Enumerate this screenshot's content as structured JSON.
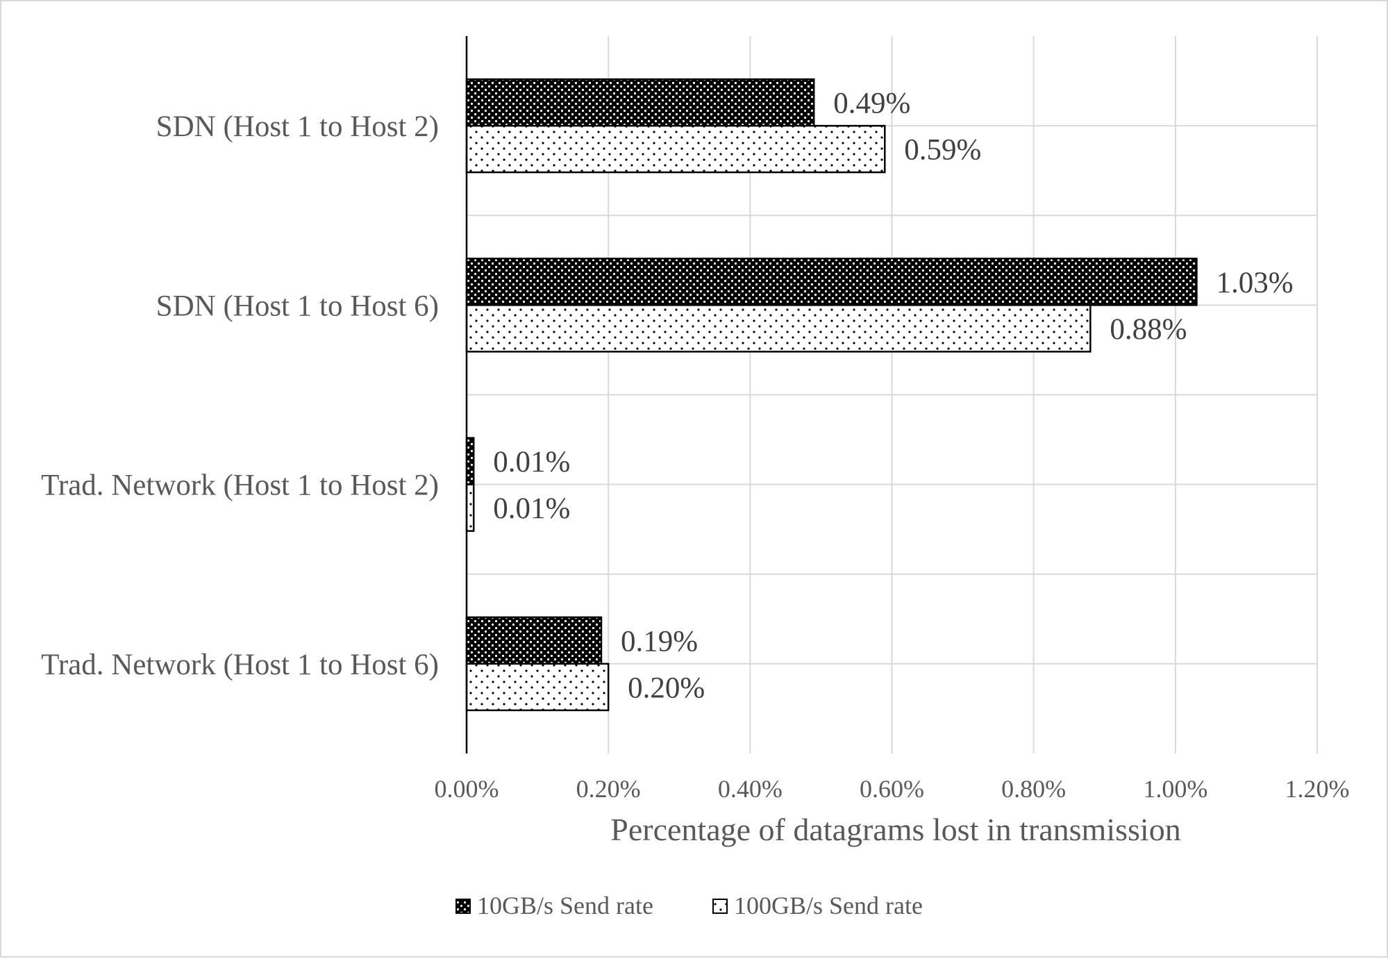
{
  "chart_data": {
    "type": "bar",
    "orientation": "horizontal",
    "categories": [
      "SDN (Host 1 to Host 2)",
      "SDN (Host 1 to Host 6)",
      "Trad. Network (Host 1 to Host 2)",
      "Trad. Network (Host 1 to Host 6)"
    ],
    "series": [
      {
        "name": "10GB/s Send rate",
        "values": [
          0.49,
          1.03,
          0.01,
          0.19
        ],
        "labels": [
          "0.49%",
          "1.03%",
          "0.01%",
          "0.19%"
        ],
        "fill": "dark-dotted"
      },
      {
        "name": "100GB/s Send rate",
        "values": [
          0.59,
          0.88,
          0.01,
          0.2
        ],
        "labels": [
          "0.59%",
          "0.88%",
          "0.01%",
          "0.20%"
        ],
        "fill": "light-dotted"
      }
    ],
    "xlabel": "Percentage of datagrams lost in transmission",
    "xlim": [
      0,
      1.2
    ],
    "xticks": [
      0,
      0.2,
      0.4,
      0.6,
      0.8,
      1.0,
      1.2
    ],
    "xtick_labels": [
      "0.00%",
      "0.20%",
      "0.40%",
      "0.60%",
      "0.80%",
      "1.00%",
      "1.20%"
    ],
    "grid": true,
    "legend_position": "bottom"
  },
  "colors": {
    "bar_dark": "#000000",
    "bar_light": "#ffffff",
    "grid": "#d9d9d9",
    "axis": "#000000",
    "text": "#595959"
  }
}
